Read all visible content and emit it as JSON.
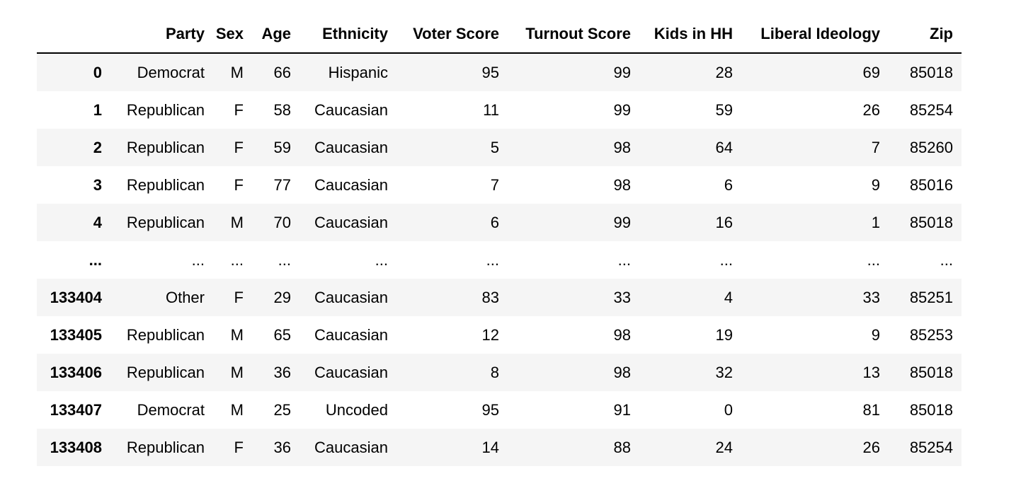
{
  "columns": [
    "",
    "Party",
    "Sex",
    "Age",
    "Ethnicity",
    "Voter Score",
    "Turnout Score",
    "Kids in HH",
    "Liberal Ideology",
    "Zip"
  ],
  "rows": [
    [
      "0",
      "Democrat",
      "M",
      "66",
      "Hispanic",
      "95",
      "99",
      "28",
      "69",
      "85018"
    ],
    [
      "1",
      "Republican",
      "F",
      "58",
      "Caucasian",
      "11",
      "99",
      "59",
      "26",
      "85254"
    ],
    [
      "2",
      "Republican",
      "F",
      "59",
      "Caucasian",
      "5",
      "98",
      "64",
      "7",
      "85260"
    ],
    [
      "3",
      "Republican",
      "F",
      "77",
      "Caucasian",
      "7",
      "98",
      "6",
      "9",
      "85016"
    ],
    [
      "4",
      "Republican",
      "M",
      "70",
      "Caucasian",
      "6",
      "99",
      "16",
      "1",
      "85018"
    ],
    [
      "...",
      "...",
      "...",
      "...",
      "...",
      "...",
      "...",
      "...",
      "...",
      "..."
    ],
    [
      "133404",
      "Other",
      "F",
      "29",
      "Caucasian",
      "83",
      "33",
      "4",
      "33",
      "85251"
    ],
    [
      "133405",
      "Republican",
      "M",
      "65",
      "Caucasian",
      "12",
      "98",
      "19",
      "9",
      "85253"
    ],
    [
      "133406",
      "Republican",
      "M",
      "36",
      "Caucasian",
      "8",
      "98",
      "32",
      "13",
      "85018"
    ],
    [
      "133407",
      "Democrat",
      "M",
      "25",
      "Uncoded",
      "95",
      "91",
      "0",
      "81",
      "85018"
    ],
    [
      "133408",
      "Republican",
      "F",
      "36",
      "Caucasian",
      "14",
      "88",
      "24",
      "26",
      "85254"
    ]
  ]
}
